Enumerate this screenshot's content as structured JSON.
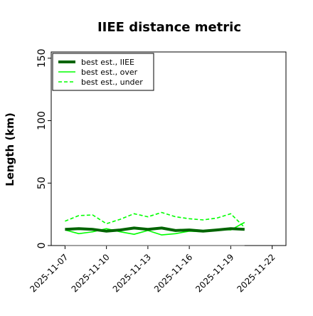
{
  "chart_data": {
    "type": "line",
    "title": "IIEE distance metric",
    "xlabel": "",
    "ylabel": "Length (km)",
    "ylim": [
      0,
      155
    ],
    "xlim": [
      "2025-11-06",
      "2025-11-23"
    ],
    "x_ticks": [
      "2025-11-07",
      "2025-11-10",
      "2025-11-13",
      "2025-11-16",
      "2025-11-19",
      "2025-11-22"
    ],
    "y_ticks": [
      0,
      50,
      100,
      150
    ],
    "grid": false,
    "legend_position": "top-left",
    "x": [
      "2025-11-07",
      "2025-11-08",
      "2025-11-09",
      "2025-11-10",
      "2025-11-11",
      "2025-11-12",
      "2025-11-13",
      "2025-11-14",
      "2025-11-15",
      "2025-11-16",
      "2025-11-17",
      "2025-11-18",
      "2025-11-19",
      "2025-11-20"
    ],
    "series": [
      {
        "name": "best est., IIEE",
        "color": "#006400",
        "style": "solid-thick",
        "values": [
          13,
          13.5,
          13,
          11.5,
          12.5,
          14,
          13,
          14,
          12,
          12.5,
          11.5,
          12.5,
          13.5,
          13
        ]
      },
      {
        "name": "best est., over",
        "color": "#00ff00",
        "style": "solid",
        "values": [
          12.5,
          9.5,
          11,
          13.5,
          11,
          9,
          12,
          8.5,
          9.5,
          11.5,
          11,
          13,
          12.5,
          18.5
        ]
      },
      {
        "name": "best est., under",
        "color": "#00ff00",
        "style": "dashed",
        "values": [
          19.5,
          24,
          24.5,
          17.5,
          21,
          25.5,
          23,
          26.5,
          23,
          21.5,
          20.5,
          22,
          25.5,
          14.5
        ]
      },
      {
        "name": "",
        "color": "#808080",
        "style": "solid",
        "values": [
          0,
          0,
          0,
          0,
          0,
          0,
          0,
          0,
          0,
          0,
          0,
          0,
          0,
          0
        ]
      }
    ]
  }
}
